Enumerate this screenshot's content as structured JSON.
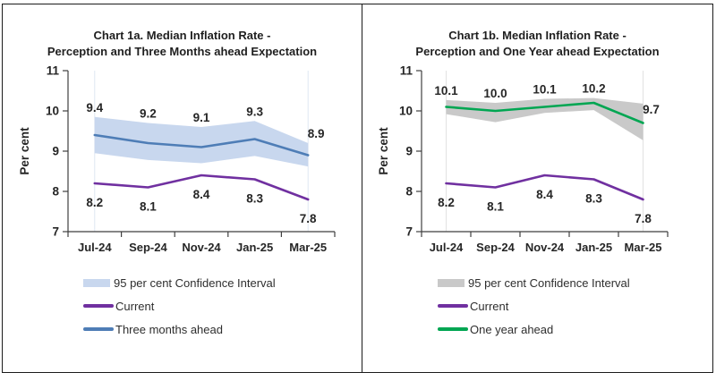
{
  "chart_data": [
    {
      "type": "line",
      "title_lines": [
        "Chart 1a. Median Inflation Rate -",
        "Perception and Three Months ahead Expectation"
      ],
      "categories": [
        "Jul-24",
        "Sep-24",
        "Nov-24",
        "Jan-25",
        "Mar-25"
      ],
      "series": [
        {
          "name": "Current",
          "color": "#7030a0",
          "values": [
            8.2,
            8.1,
            8.4,
            8.3,
            7.8
          ]
        },
        {
          "name": "Three months ahead",
          "color": "#4e7db6",
          "values": [
            9.4,
            9.2,
            9.1,
            9.3,
            8.9
          ]
        }
      ],
      "band": {
        "name": "95 per cent Confidence Interval",
        "color": "#c8d7ee",
        "upper": [
          9.85,
          9.7,
          9.6,
          9.75,
          9.2
        ],
        "lower": [
          8.95,
          8.78,
          8.7,
          8.88,
          8.62
        ]
      },
      "ylabel": "Per cent",
      "xlabel": "",
      "ylim": [
        7,
        11
      ],
      "yticks": [
        7,
        8,
        9,
        10,
        11
      ],
      "grid": false,
      "legend_position": "bottom"
    },
    {
      "type": "line",
      "title_lines": [
        "Chart 1b. Median Inflation Rate -",
        "Perception and One Year ahead Expectation"
      ],
      "categories": [
        "Jul-24",
        "Sep-24",
        "Nov-24",
        "Jan-25",
        "Mar-25"
      ],
      "series": [
        {
          "name": "Current",
          "color": "#7030a0",
          "values": [
            8.2,
            8.1,
            8.4,
            8.3,
            7.8
          ]
        },
        {
          "name": "One year ahead",
          "color": "#00a652",
          "values": [
            10.1,
            10.0,
            10.1,
            10.2,
            9.7
          ]
        }
      ],
      "band": {
        "name": "95 per cent Confidence Interval",
        "color": "#c9c9c9",
        "upper": [
          10.27,
          10.2,
          10.3,
          10.32,
          10.18
        ],
        "lower": [
          9.92,
          9.72,
          9.95,
          10.02,
          9.27
        ]
      },
      "ylabel": "Per cent",
      "xlabel": "",
      "ylim": [
        7,
        11
      ],
      "yticks": [
        7,
        8,
        9,
        10,
        11
      ],
      "grid": false,
      "legend_position": "bottom"
    }
  ]
}
